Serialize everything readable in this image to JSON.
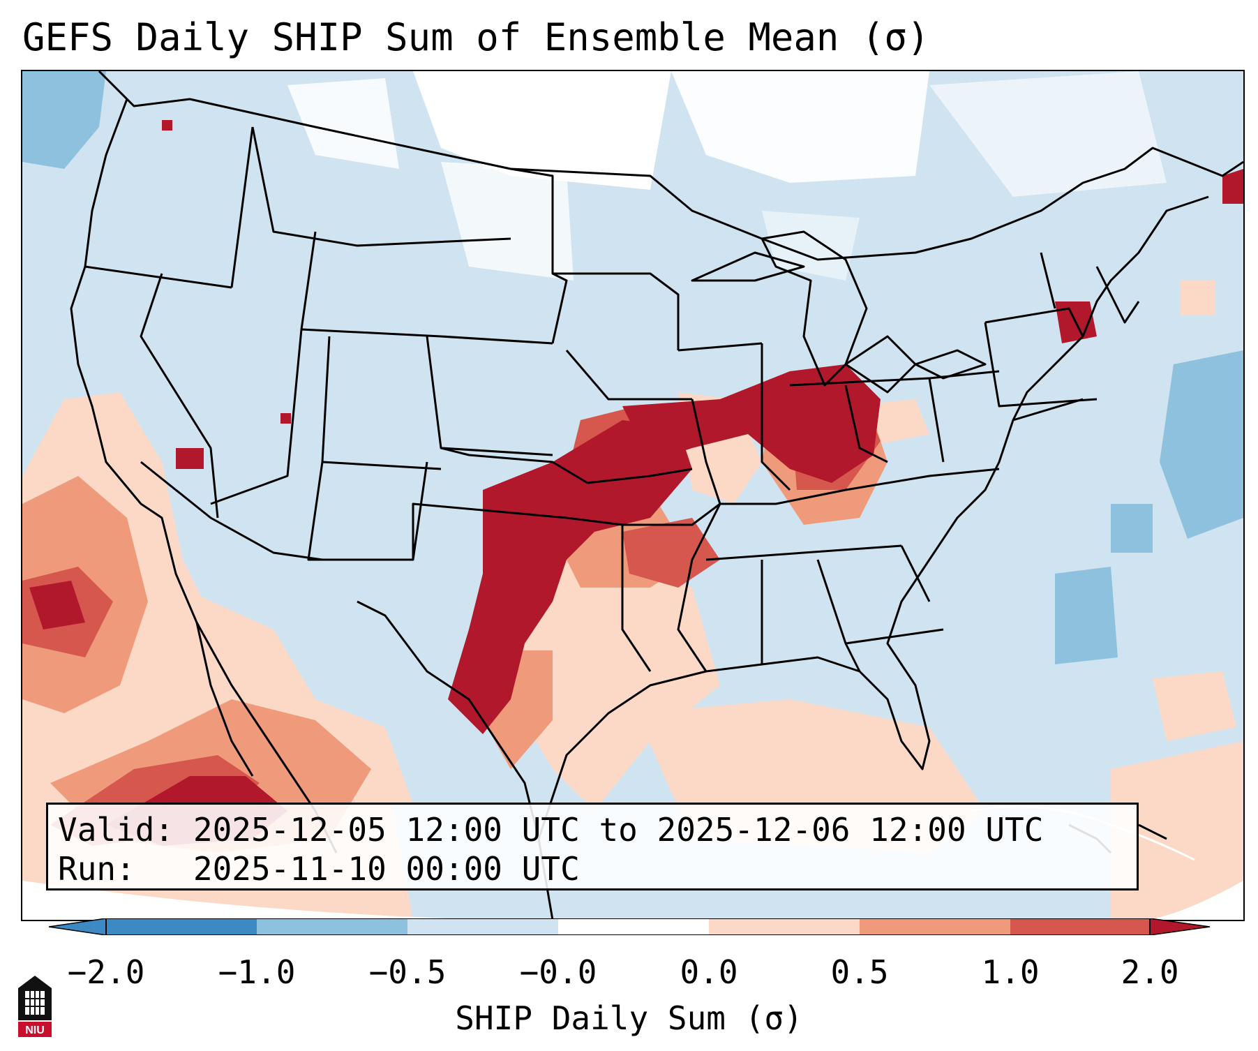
{
  "title": "GEFS Daily SHIP Sum of Ensemble Mean (σ)",
  "info": {
    "valid_label": "Valid:",
    "valid_value": "2025-12-05 12:00 UTC to 2025-12-06 12:00 UTC",
    "run_label": "Run:",
    "run_value": "2025-11-10 00:00 UTC"
  },
  "colorbar": {
    "label": "SHIP Daily Sum (σ)",
    "ticks": [
      "−2.0",
      "−1.0",
      "−0.5",
      "−0.0",
      "0.0",
      "0.5",
      "1.0",
      "2.0"
    ],
    "colors": [
      "#3c89c4",
      "#8ec1de",
      "#cfe3f0",
      "#ffffff",
      "#fcd9c6",
      "#ef9a7a",
      "#d6574d",
      "#b2182b"
    ]
  },
  "logo": {
    "text": "NIU"
  }
}
